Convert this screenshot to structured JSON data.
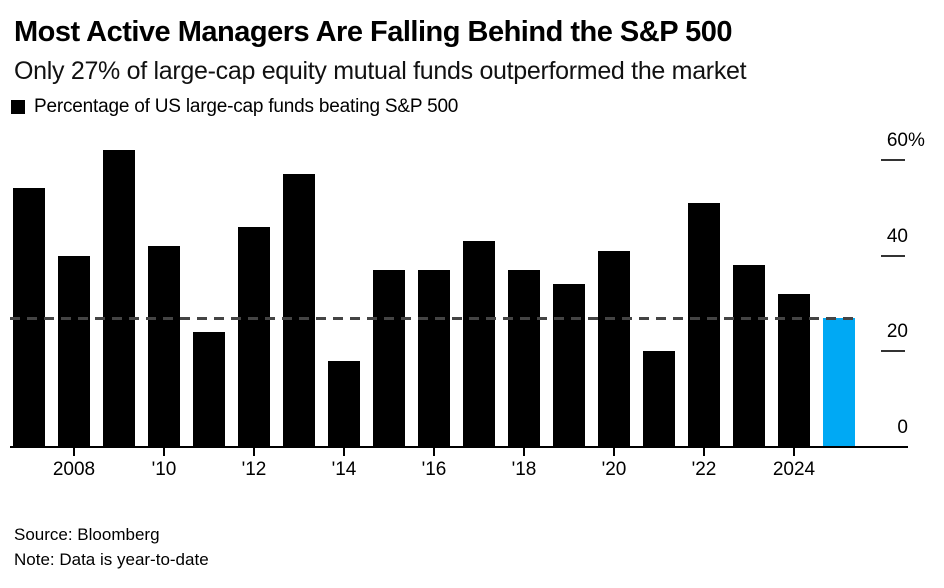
{
  "header": {
    "title": "Most Active Managers Are Falling Behind the S&P 500",
    "subtitle": "Only 27% of large-cap equity mutual funds outperformed the market"
  },
  "legend": {
    "label": "Percentage of US large-cap funds beating S&P 500",
    "swatch_color": "#000000"
  },
  "footer": {
    "source": "Source: Bloomberg",
    "note": "Note: Data is year-to-date"
  },
  "colors": {
    "bar": "#000000",
    "highlight_bar": "#00a9f4",
    "reference_line": "#444444"
  },
  "chart_data": {
    "type": "bar",
    "title": "Most Active Managers Are Falling Behind the S&P 500",
    "subtitle": "Only 27% of large-cap equity mutual funds outperformed the market",
    "legend_entry": "Percentage of US large-cap funds beating S&P 500",
    "categories": [
      "2007",
      "2008",
      "2009",
      "2010",
      "2011",
      "2012",
      "2013",
      "2014",
      "2015",
      "2016",
      "2017",
      "2018",
      "2019",
      "2020",
      "2021",
      "2022",
      "2023",
      "2024",
      "2025"
    ],
    "values": [
      54,
      40,
      62,
      42,
      24,
      46,
      57,
      18,
      37,
      37,
      43,
      37,
      34,
      41,
      20,
      51,
      38,
      32,
      27
    ],
    "highlight_index": 18,
    "xlabel": "",
    "ylabel": "%",
    "ylim": [
      0,
      65
    ],
    "grid": false,
    "legend_position": "top-left",
    "y_ticks": [
      {
        "value": 60,
        "label": "60",
        "suffix": "%"
      },
      {
        "value": 40,
        "label": "40",
        "suffix": ""
      },
      {
        "value": 20,
        "label": "20",
        "suffix": ""
      },
      {
        "value": 0,
        "label": "0",
        "suffix": ""
      }
    ],
    "x_ticks": [
      {
        "year": 2008,
        "label": "2008"
      },
      {
        "year": 2010,
        "label": "'10"
      },
      {
        "year": 2012,
        "label": "'12"
      },
      {
        "year": 2014,
        "label": "'14"
      },
      {
        "year": 2016,
        "label": "'16"
      },
      {
        "year": 2018,
        "label": "'18"
      },
      {
        "year": 2020,
        "label": "'20"
      },
      {
        "year": 2022,
        "label": "'22"
      },
      {
        "year": 2024,
        "label": "2024"
      }
    ],
    "reference_line": {
      "value": 27,
      "style": "dashed"
    }
  }
}
